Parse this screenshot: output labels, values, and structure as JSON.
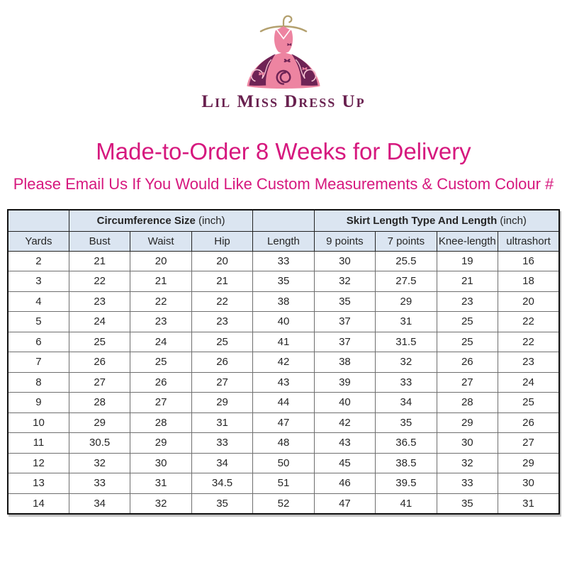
{
  "brand": {
    "logo_text": "Lil Miss Dress Up",
    "logo_icon": "dress-on-hanger-icon"
  },
  "heading": {
    "title": "Made-to-Order 8 Weeks for Delivery",
    "subtitle": "Please Email Us If You Would Like Custom Measurements & Custom Colour #"
  },
  "colors": {
    "heading_pink": "#d6187e",
    "header_bg": "#dbe5f1",
    "brand_plum": "#69214f",
    "dress_pink": "#ed84a1",
    "dress_plum": "#6e2355",
    "hanger_gold": "#b3a06e",
    "grid_line": "#6e6e6e",
    "text_dark": "#262626"
  },
  "table": {
    "group_headers": [
      {
        "label_bold": "Circumference Size",
        "label_regular": "(inch)",
        "span": 3
      },
      {
        "label_bold": "Skirt Length Type And Length",
        "label_regular": "(inch)",
        "span": 4
      }
    ],
    "columns": [
      "Yards",
      "Bust",
      "Waist",
      "Hip",
      "Length",
      "9 points",
      "7 points",
      "Knee-length",
      "ultrashort"
    ],
    "rows": [
      [
        "2",
        "21",
        "20",
        "20",
        "33",
        "30",
        "25.5",
        "19",
        "16"
      ],
      [
        "3",
        "22",
        "21",
        "21",
        "35",
        "32",
        "27.5",
        "21",
        "18"
      ],
      [
        "4",
        "23",
        "22",
        "22",
        "38",
        "35",
        "29",
        "23",
        "20"
      ],
      [
        "5",
        "24",
        "23",
        "23",
        "40",
        "37",
        "31",
        "25",
        "22"
      ],
      [
        "6",
        "25",
        "24",
        "25",
        "41",
        "37",
        "31.5",
        "25",
        "22"
      ],
      [
        "7",
        "26",
        "25",
        "26",
        "42",
        "38",
        "32",
        "26",
        "23"
      ],
      [
        "8",
        "27",
        "26",
        "27",
        "43",
        "39",
        "33",
        "27",
        "24"
      ],
      [
        "9",
        "28",
        "27",
        "29",
        "44",
        "40",
        "34",
        "28",
        "25"
      ],
      [
        "10",
        "29",
        "28",
        "31",
        "47",
        "42",
        "35",
        "29",
        "26"
      ],
      [
        "11",
        "30.5",
        "29",
        "33",
        "48",
        "43",
        "36.5",
        "30",
        "27"
      ],
      [
        "12",
        "32",
        "30",
        "34",
        "50",
        "45",
        "38.5",
        "32",
        "29"
      ],
      [
        "13",
        "33",
        "31",
        "34.5",
        "51",
        "46",
        "39.5",
        "33",
        "30"
      ],
      [
        "14",
        "34",
        "32",
        "35",
        "52",
        "47",
        "41",
        "35",
        "31"
      ]
    ]
  }
}
